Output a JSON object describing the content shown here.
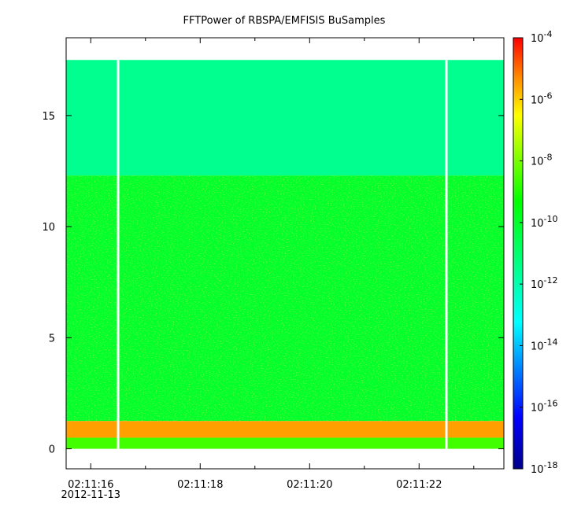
{
  "chart_data": {
    "type": "heatmap",
    "title": "FFTPower of RBSPA/EMFISIS  BuSamples",
    "xlabel": "",
    "ylabel": "",
    "x_ticks": [
      "02:11:16",
      "02:11:18",
      "02:11:20",
      "02:11:22"
    ],
    "x_tick_seconds": [
      16,
      18,
      20,
      22
    ],
    "x_minor_tick_seconds": [
      17,
      19,
      21,
      23
    ],
    "x_date_label": "2012-11-13",
    "xlim_seconds": [
      15.55,
      23.55
    ],
    "y_ticks": [
      "0",
      "5",
      "10",
      "15"
    ],
    "y_tick_values": [
      0,
      5,
      10,
      15
    ],
    "ylim": [
      -0.9,
      18.5
    ],
    "data_ymax": 17.5,
    "data_gaps_seconds": [
      16.5,
      22.5
    ],
    "colorbar": {
      "scale": "log",
      "range": [
        1e-18,
        0.0001
      ],
      "tick_exponents": [
        -4,
        -6,
        -8,
        -10,
        -12,
        -14,
        -16,
        -18
      ]
    },
    "power_regions": [
      {
        "y_range": [
          12.3,
          17.5
        ],
        "log_power": -11.5,
        "description": "upper band"
      },
      {
        "y_range": [
          1.25,
          12.3
        ],
        "log_power": -10.0,
        "description": "main band"
      },
      {
        "y_range": [
          0.5,
          1.25
        ],
        "log_power": -5.5,
        "description": "intense low-frequency band"
      },
      {
        "y_range": [
          0.0,
          0.5
        ],
        "log_power": -8.6,
        "description": "lowest band"
      }
    ]
  }
}
